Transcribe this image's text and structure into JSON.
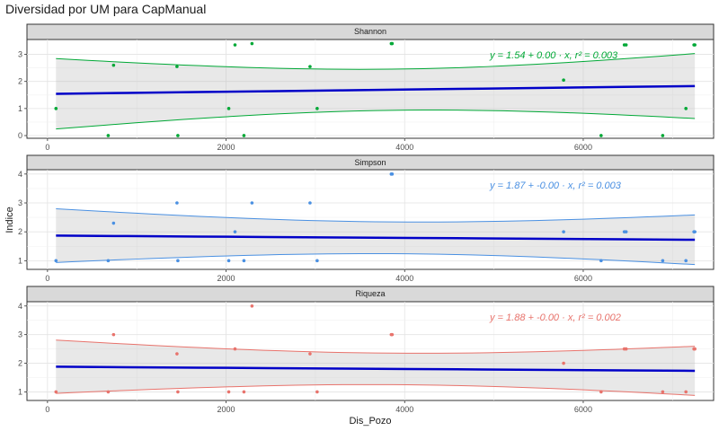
{
  "chart_data": {
    "type": "scatter",
    "title": "Diversidad por UM para CapManual",
    "xlabel": "Dis_Pozo",
    "ylabel": "Indice",
    "xlim": [
      -230,
      7460
    ],
    "x_ticks": [
      0,
      2000,
      4000,
      6000
    ],
    "x_tick_labels": [
      "0",
      "2000",
      "4000",
      "6000"
    ],
    "x_points": [
      95,
      680,
      740,
      1450,
      1460,
      2030,
      2100,
      2200,
      2290,
      2940,
      3020,
      3850,
      3860,
      5780,
      6200,
      6460,
      6480,
      6890,
      7150,
      7240,
      7250
    ],
    "panels": [
      {
        "name": "Shannon",
        "color": "#00a836",
        "ylim": [
          -0.1,
          3.55
        ],
        "y_ticks": [
          0,
          1,
          2,
          3
        ],
        "y_tick_labels": [
          "0",
          "1",
          "2",
          "3"
        ],
        "values": [
          1.0,
          0.0,
          2.6,
          2.55,
          0.0,
          1.0,
          3.35,
          0.0,
          3.4,
          2.55,
          1.0,
          3.4,
          3.4,
          2.05,
          0.0,
          3.35,
          3.35,
          0.0,
          1.0,
          3.35,
          3.35
        ],
        "fit": {
          "intercept": 1.54,
          "slope": 4e-05,
          "ci_center": 3900,
          "ci_half_at_center": 0.76,
          "ci_half_at_edge": 1.3
        },
        "equation": "y = 1.54 + 0.00 · x,  r² = 0.003"
      },
      {
        "name": "Simpson",
        "color": "#4a90e2",
        "ylim": [
          0.7,
          4.15
        ],
        "y_ticks": [
          1,
          2,
          3,
          4
        ],
        "y_tick_labels": [
          "1",
          "2",
          "3",
          "4"
        ],
        "values": [
          1.0,
          1.0,
          2.3,
          3.0,
          1.0,
          1.0,
          2.0,
          1.0,
          3.0,
          3.0,
          1.0,
          4.0,
          4.0,
          2.0,
          1.0,
          2.0,
          2.0,
          1.0,
          1.0,
          2.0,
          2.0
        ],
        "fit": {
          "intercept": 1.87,
          "slope": -2e-05,
          "ci_center": 3900,
          "ci_half_at_center": 0.55,
          "ci_half_at_edge": 0.93
        },
        "equation": "y = 1.87 + -0.00 · x,  r² = 0.003"
      },
      {
        "name": "Riqueza",
        "color": "#e8736c",
        "ylim": [
          0.7,
          4.15
        ],
        "y_ticks": [
          1,
          2,
          3,
          4
        ],
        "y_tick_labels": [
          "1",
          "2",
          "3",
          "4"
        ],
        "values": [
          1.0,
          1.0,
          3.0,
          2.33,
          1.0,
          1.0,
          2.5,
          1.0,
          4.0,
          2.33,
          1.0,
          3.0,
          3.0,
          2.0,
          1.0,
          2.5,
          2.5,
          1.0,
          1.0,
          2.5,
          2.5
        ],
        "fit": {
          "intercept": 1.88,
          "slope": -2e-05,
          "ci_center": 3900,
          "ci_half_at_center": 0.55,
          "ci_half_at_edge": 0.93
        },
        "equation": "y = 1.88 + -0.00 · x,  r² = 0.002"
      }
    ]
  }
}
